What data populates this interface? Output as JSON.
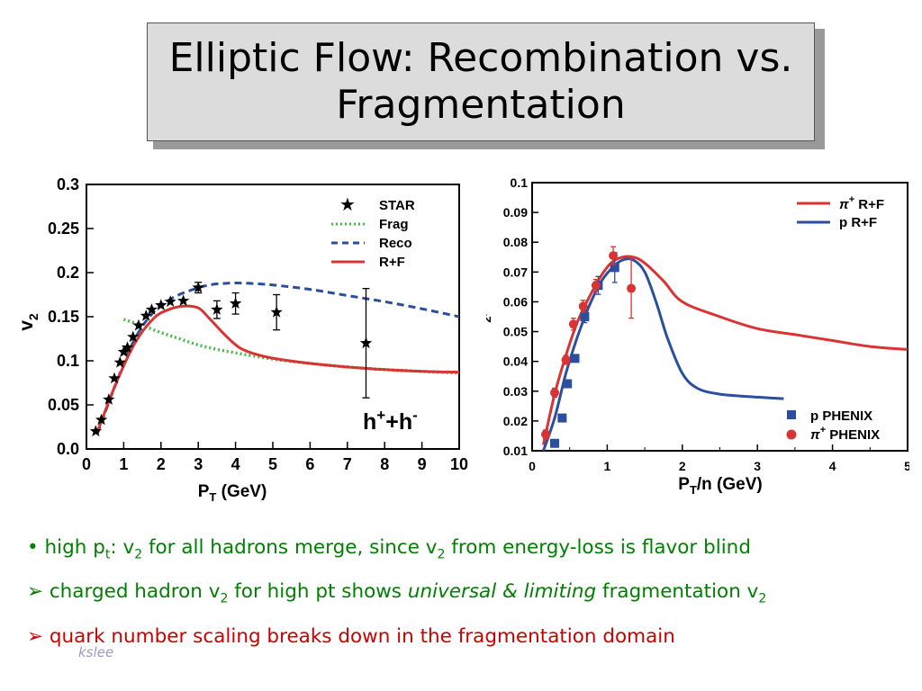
{
  "slide": {
    "title_line1": "Elliptic Flow: Recombination vs.",
    "title_line2": "Fragmentation",
    "footer": "kslee"
  },
  "bullets": {
    "b1": {
      "marker": "•",
      "t1": "high p",
      "t1_sub": "t",
      "t2": ": v",
      "t2_sub": "2",
      "t3": " for all hadrons merge, since v",
      "t3_sub": "2",
      "t4": " from energy-loss is flavor blind"
    },
    "b2": {
      "marker": "➢",
      "t1": "charged hadron v",
      "t1_sub": "2",
      "t2": " for high pt shows ",
      "t3": "universal  & limiting",
      "t4": " fragmentation v",
      "t4_sub": "2"
    },
    "b3": {
      "marker": "➢",
      "t1": "quark number scaling breaks down in the fragmentation domain"
    }
  },
  "colors": {
    "green_text": "#008000",
    "red_text": "#cc0000",
    "curve_red": "#d93333",
    "curve_blue": "#2b4f9e",
    "curve_green": "#44bb44",
    "curve_blue_dash": "#2a4f9a"
  },
  "chart_data": [
    {
      "type": "line",
      "xlabel_main": "P",
      "xlabel_sub": "T",
      "xlabel_unit": " (GeV)",
      "ylabel_main": "v",
      "ylabel_sub": "2",
      "xlim": [
        0,
        10
      ],
      "ylim": [
        0,
        0.3
      ],
      "xticks": [
        "0",
        "1",
        "2",
        "3",
        "4",
        "5",
        "6",
        "7",
        "8",
        "9",
        "10"
      ],
      "yticks": [
        "0.0",
        "0.05",
        "0.1",
        "0.15",
        "0.2",
        "0.25",
        "0.3"
      ],
      "annotation_main": "h",
      "annotation_sup1": "+",
      "annotation_mid": "+h",
      "annotation_sup2": "-",
      "legend": [
        "STAR",
        "Frag",
        "Reco",
        "R+F"
      ],
      "series": [
        {
          "name": "STAR",
          "style": "star",
          "x": [
            0.25,
            0.4,
            0.6,
            0.75,
            0.9,
            1.0,
            1.1,
            1.25,
            1.4,
            1.6,
            1.75,
            2.0,
            2.25,
            2.6,
            3.0,
            3.5,
            4.0,
            5.1,
            7.5
          ],
          "y": [
            0.02,
            0.033,
            0.056,
            0.08,
            0.098,
            0.11,
            0.115,
            0.127,
            0.14,
            0.151,
            0.158,
            0.163,
            0.167,
            0.168,
            0.183,
            0.158,
            0.165,
            0.155,
            0.12
          ],
          "err": [
            0,
            0,
            0,
            0,
            0,
            0,
            0,
            0,
            0,
            0,
            0,
            0,
            0,
            0,
            0.006,
            0.01,
            0.012,
            0.02,
            0.062
          ]
        },
        {
          "name": "Frag",
          "style": "dotted",
          "x": [
            1.0,
            1.5,
            2.0,
            2.5,
            3.0,
            3.5,
            4.0,
            5.0,
            6.0,
            7.0,
            8.0,
            9.0,
            10.0
          ],
          "y": [
            0.147,
            0.14,
            0.132,
            0.125,
            0.118,
            0.113,
            0.109,
            0.102,
            0.097,
            0.093,
            0.09,
            0.088,
            0.086
          ]
        },
        {
          "name": "Reco",
          "style": "dashed",
          "x": [
            0.3,
            0.8,
            1.3,
            1.8,
            2.3,
            2.8,
            3.3,
            3.8,
            4.3,
            5.0,
            6.0,
            7.0,
            8.0,
            9.0,
            10.0
          ],
          "y": [
            0.018,
            0.075,
            0.125,
            0.155,
            0.171,
            0.18,
            0.186,
            0.188,
            0.188,
            0.186,
            0.181,
            0.174,
            0.167,
            0.159,
            0.15
          ]
        },
        {
          "name": "R+F",
          "style": "solid",
          "x": [
            0.3,
            0.8,
            1.3,
            1.8,
            2.2,
            2.6,
            3.0,
            3.3,
            3.7,
            4.1,
            4.5,
            5.0,
            6.0,
            7.0,
            8.0,
            9.0,
            10.0
          ],
          "y": [
            0.02,
            0.075,
            0.12,
            0.148,
            0.158,
            0.162,
            0.16,
            0.148,
            0.13,
            0.115,
            0.108,
            0.103,
            0.097,
            0.093,
            0.09,
            0.088,
            0.087
          ]
        }
      ]
    },
    {
      "type": "line",
      "xlabel_main": "P",
      "xlabel_sub": "T",
      "xlabel_unit": "/n (GeV)",
      "ylabel_main": "v",
      "ylabel_sub": "2",
      "ylabel_unit": "/n",
      "xlim": [
        0,
        5
      ],
      "ylim": [
        0.01,
        0.1
      ],
      "xticks": [
        "0",
        "1",
        "2",
        "3",
        "4",
        "5"
      ],
      "yticks": [
        "0.01",
        "0.02",
        "0.03",
        "0.04",
        "0.05",
        "0.06",
        "0.07",
        "0.08",
        "0.09",
        "0.1"
      ],
      "legend_top": [
        {
          "main": "π",
          "sup": "+",
          "rest": " R+F"
        },
        {
          "main": "p R+F",
          "sup": "",
          "rest": ""
        }
      ],
      "legend_bottom": [
        {
          "main": "p PHENIX",
          "sup": "",
          "rest": ""
        },
        {
          "main": "π",
          "sup": "+",
          "rest": " PHENIX"
        }
      ],
      "series": [
        {
          "name": "π+ R+F",
          "style": "solid",
          "x": [
            0.15,
            0.3,
            0.45,
            0.6,
            0.75,
            0.9,
            1.05,
            1.2,
            1.35,
            1.5,
            1.75,
            2.0,
            2.5,
            3.0,
            3.5,
            4.0,
            4.5,
            5.0
          ],
          "y": [
            0.012,
            0.029,
            0.042,
            0.053,
            0.061,
            0.068,
            0.073,
            0.075,
            0.075,
            0.073,
            0.067,
            0.06,
            0.055,
            0.051,
            0.049,
            0.047,
            0.045,
            0.044
          ]
        },
        {
          "name": "p R+F",
          "style": "solid",
          "x": [
            0.15,
            0.3,
            0.45,
            0.6,
            0.75,
            0.9,
            1.05,
            1.2,
            1.35,
            1.5,
            1.65,
            1.8,
            2.0,
            2.2,
            2.5,
            3.0,
            3.35
          ],
          "y": [
            0.01,
            0.021,
            0.036,
            0.048,
            0.058,
            0.066,
            0.071,
            0.074,
            0.074,
            0.07,
            0.06,
            0.048,
            0.036,
            0.031,
            0.029,
            0.028,
            0.0275
          ]
        },
        {
          "name": "p PHENIX",
          "style": "square",
          "x": [
            0.3,
            0.4,
            0.47,
            0.57,
            0.7,
            0.88,
            1.1
          ],
          "y": [
            0.0125,
            0.021,
            0.0325,
            0.041,
            0.055,
            0.0655,
            0.0715
          ],
          "err": [
            0.0005,
            0.0005,
            0.0005,
            0.0005,
            0.002,
            0.003,
            0.005
          ]
        },
        {
          "name": "π+ PHENIX",
          "style": "circle",
          "x": [
            0.18,
            0.3,
            0.45,
            0.55,
            0.68,
            0.85,
            1.08,
            1.32
          ],
          "y": [
            0.0155,
            0.0295,
            0.0405,
            0.0525,
            0.0585,
            0.0655,
            0.0755,
            0.0645
          ],
          "err": [
            0.0015,
            0.0015,
            0.0015,
            0.002,
            0.002,
            0.002,
            0.003,
            0.01
          ]
        }
      ]
    }
  ]
}
